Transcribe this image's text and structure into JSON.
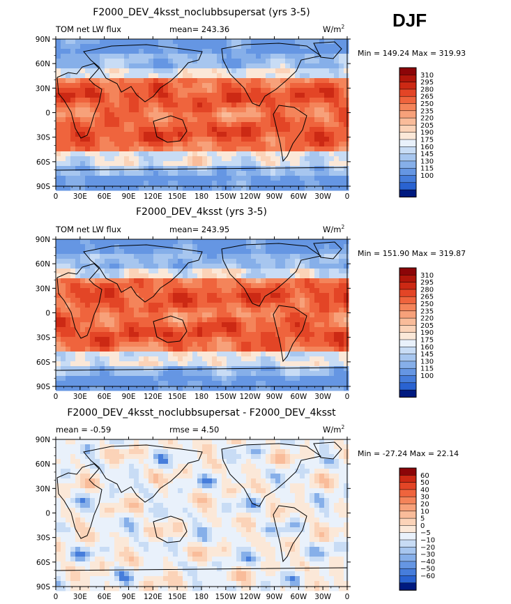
{
  "season": "DJF",
  "units": "W/m",
  "units_sup": "2",
  "x_ticks": [
    "0",
    "30E",
    "60E",
    "90E",
    "120E",
    "150E",
    "180",
    "150W",
    "120W",
    "90W",
    "60W",
    "30W",
    "0"
  ],
  "y_ticks": [
    "90N",
    "60N",
    "30N",
    "0",
    "30S",
    "60S",
    "90S"
  ],
  "warm_colors": [
    "#fbe8d8",
    "#fbd3b8",
    "#f9bc9a",
    "#f7a17a",
    "#f4845a",
    "#ef643d",
    "#e34526",
    "#cc2914",
    "#b0160b",
    "#8c0508"
  ],
  "cool_colors": [
    "#e9f1fb",
    "#c8dcf5",
    "#a7c6ef",
    "#86afe9",
    "#6596e3",
    "#467ddb",
    "#2a63d1",
    "#1548bd",
    "#082fa2",
    "#001a80",
    "#00106a"
  ],
  "chart_data": [
    {
      "type": "heatmap",
      "title": "F2000_DEV_4ksst_noclubbsupersat (yrs 3-5)",
      "left_label": "TOM net LW flux",
      "mean_text": "mean= 243.36",
      "minmax_text": "Min = 149.24 Max = 319.93",
      "colorbar_labels": [
        "310",
        "295",
        "280",
        "265",
        "250",
        "235",
        "220",
        "205",
        "190",
        "175",
        "160",
        "145",
        "130",
        "115",
        "100"
      ],
      "colorbar_colors": [
        "#8c0508",
        "#b0160b",
        "#cc2914",
        "#e34526",
        "#ef643d",
        "#f4845a",
        "#f7a17a",
        "#f9bc9a",
        "#fbd3b8",
        "#fbe8d8",
        "#e9f1fb",
        "#c8dcf5",
        "#a7c6ef",
        "#86afe9",
        "#6596e3",
        "#467ddb",
        "#2a63d1",
        "#001a80"
      ],
      "mean_value": 243.36,
      "min": 149.24,
      "max": 319.93
    },
    {
      "type": "heatmap",
      "title": "F2000_DEV_4ksst (yrs 3-5)",
      "left_label": "TOM net LW flux",
      "mean_text": "mean= 243.95",
      "minmax_text": "Min = 151.90 Max = 319.87",
      "colorbar_labels": [
        "310",
        "295",
        "280",
        "265",
        "250",
        "235",
        "220",
        "205",
        "190",
        "175",
        "160",
        "145",
        "130",
        "115",
        "100"
      ],
      "colorbar_colors": [
        "#8c0508",
        "#b0160b",
        "#cc2914",
        "#e34526",
        "#ef643d",
        "#f4845a",
        "#f7a17a",
        "#f9bc9a",
        "#fbd3b8",
        "#fbe8d8",
        "#e9f1fb",
        "#c8dcf5",
        "#a7c6ef",
        "#86afe9",
        "#6596e3",
        "#467ddb",
        "#2a63d1",
        "#001a80"
      ],
      "mean_value": 243.95,
      "min": 151.9,
      "max": 319.87
    },
    {
      "type": "heatmap",
      "title": "F2000_DEV_4ksst_noclubbsupersat - F2000_DEV_4ksst",
      "left_label": "mean =   -0.59",
      "mean_text": "rmse =    4.50",
      "minmax_text": "Min = -27.24 Max =  22.14",
      "colorbar_labels": [
        "60",
        "50",
        "40",
        "30",
        "20",
        "10",
        "5",
        "0",
        "−5",
        "−10",
        "−20",
        "−30",
        "−40",
        "−50",
        "−60"
      ],
      "colorbar_colors": [
        "#8c0508",
        "#cc2914",
        "#e34526",
        "#ef643d",
        "#f4845a",
        "#f7a17a",
        "#f9bc9a",
        "#fbd3b8",
        "#fbe8d8",
        "#e9f1fb",
        "#c8dcf5",
        "#a7c6ef",
        "#86afe9",
        "#6596e3",
        "#467ddb",
        "#2a63d1",
        "#001a80"
      ],
      "mean_value": -0.59,
      "rmse_value": 4.5,
      "min": -27.24,
      "max": 22.14
    }
  ]
}
